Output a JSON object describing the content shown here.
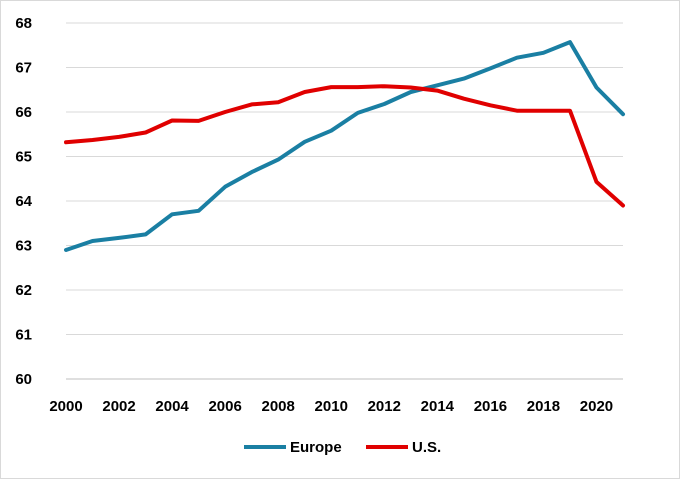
{
  "chart_data": {
    "type": "line",
    "title": "",
    "xlabel": "",
    "ylabel": "",
    "x": [
      2000,
      2001,
      2002,
      2003,
      2004,
      2005,
      2006,
      2007,
      2008,
      2009,
      2010,
      2011,
      2012,
      2013,
      2014,
      2015,
      2016,
      2017,
      2018,
      2019,
      2020,
      2021
    ],
    "x_ticks": [
      "2000",
      "2002",
      "2004",
      "2006",
      "2008",
      "2010",
      "2012",
      "2014",
      "2016",
      "2018",
      "2020"
    ],
    "y_ticks": [
      "60",
      "61",
      "62",
      "63",
      "64",
      "65",
      "66",
      "67",
      "68"
    ],
    "xlim": [
      2000,
      2021
    ],
    "ylim": [
      60,
      68
    ],
    "grid": "horizontal",
    "legend": "bottom",
    "series": [
      {
        "name": "Europe",
        "color": "#1a7fa3",
        "values": [
          62.9,
          63.1,
          63.17,
          63.25,
          63.7,
          63.78,
          64.32,
          64.65,
          64.93,
          65.33,
          65.58,
          65.98,
          66.18,
          66.45,
          66.6,
          66.75,
          66.98,
          67.22,
          67.33,
          67.57,
          66.55,
          65.95
        ]
      },
      {
        "name": "U.S.",
        "color": "#e00000",
        "values": [
          65.32,
          65.37,
          65.44,
          65.54,
          65.81,
          65.8,
          66.0,
          66.17,
          66.22,
          66.45,
          66.56,
          66.56,
          66.58,
          66.55,
          66.48,
          66.3,
          66.15,
          66.03,
          66.03,
          66.03,
          64.43,
          63.9
        ]
      }
    ]
  }
}
